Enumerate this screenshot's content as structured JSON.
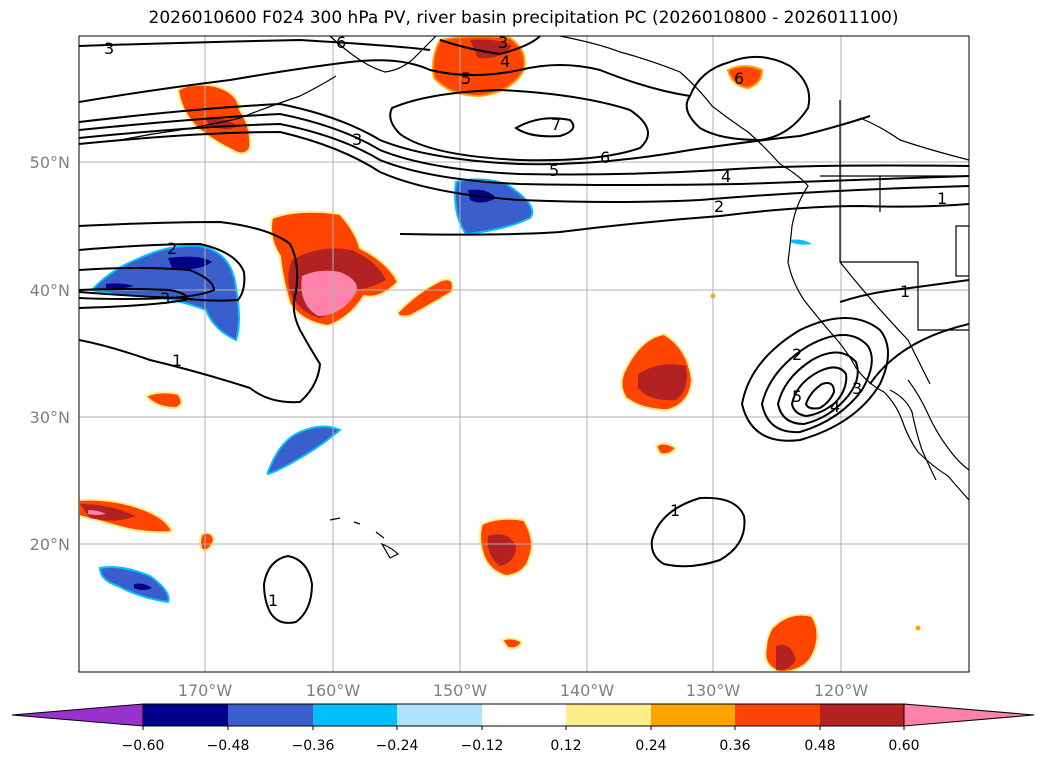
{
  "title": "2026010600 F024 300 hPa PV, river basin precipitation PC (2026010800 - 2026011100)",
  "axes": {
    "lat_labels": [
      "50°N",
      "40°N",
      "30°N",
      "20°N"
    ],
    "lon_labels": [
      "170°W",
      "160°W",
      "150°W",
      "140°W",
      "130°W",
      "120°W"
    ]
  },
  "pv_contour_labels": [
    "3",
    "6",
    "3",
    "4",
    "5",
    "6",
    "7",
    "3",
    "6",
    "5",
    "4",
    "2",
    "1",
    "2",
    "3",
    "1",
    "1",
    "2",
    "5",
    "3",
    "4",
    "1",
    "1"
  ],
  "colorbar": {
    "ticks": [
      "−0.60",
      "−0.48",
      "−0.36",
      "−0.24",
      "−0.12",
      "0.12",
      "0.24",
      "0.36",
      "0.48",
      "0.60"
    ],
    "colors": [
      "#9932cc",
      "#00008b",
      "#3a5fcd",
      "#00bfff",
      "#b0e2ff",
      "#ffffff",
      "#ffec8b",
      "#ffa500",
      "#ff4500",
      "#b22222",
      "#ff82ab"
    ]
  }
}
